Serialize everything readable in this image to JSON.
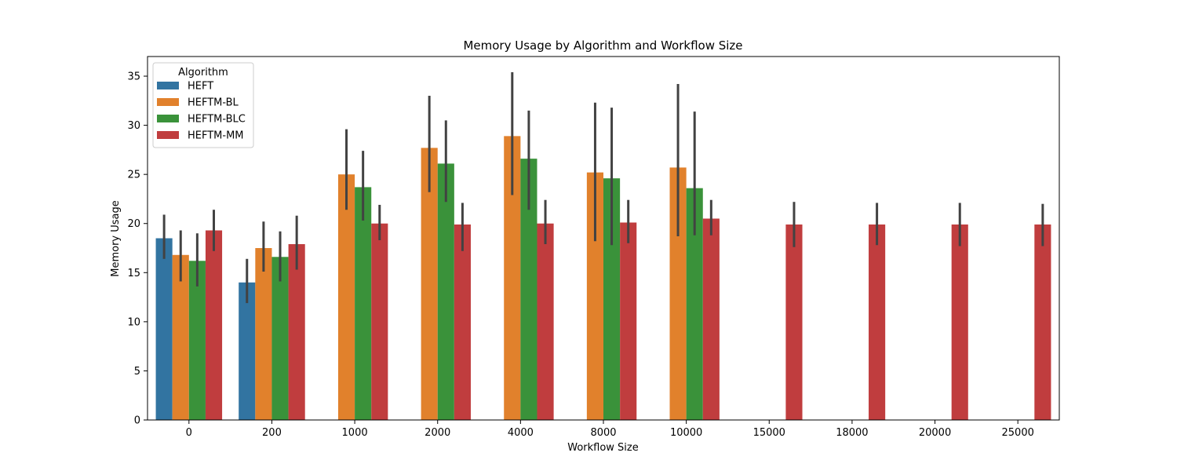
{
  "chart_data": {
    "type": "bar",
    "title": "Memory Usage by Algorithm and Workflow Size",
    "xlabel": "Workflow Size",
    "ylabel": "Memory Usage",
    "ylim": [
      0,
      37
    ],
    "yticks": [
      0,
      5,
      10,
      15,
      20,
      25,
      30,
      35
    ],
    "categories": [
      "0",
      "200",
      "1000",
      "2000",
      "4000",
      "8000",
      "10000",
      "15000",
      "18000",
      "20000",
      "25000"
    ],
    "legend": {
      "title": "Algorithm",
      "placement": "top-left"
    },
    "grid": false,
    "series": [
      {
        "name": "HEFT",
        "color": "#3274a1",
        "values": [
          18.5,
          14.0,
          null,
          null,
          null,
          null,
          null,
          null,
          null,
          null,
          null
        ],
        "ci": [
          [
            16.4,
            20.9
          ],
          [
            11.9,
            16.4
          ],
          null,
          null,
          null,
          null,
          null,
          null,
          null,
          null,
          null
        ]
      },
      {
        "name": "HEFTM-BL",
        "color": "#e1812c",
        "values": [
          16.8,
          17.5,
          25.0,
          27.7,
          28.9,
          25.2,
          25.7,
          null,
          null,
          null,
          null
        ],
        "ci": [
          [
            14.1,
            19.3
          ],
          [
            15.1,
            20.2
          ],
          [
            21.4,
            29.6
          ],
          [
            23.2,
            33.0
          ],
          [
            22.9,
            35.4
          ],
          [
            18.2,
            32.3
          ],
          [
            18.7,
            34.2
          ],
          null,
          null,
          null,
          null
        ]
      },
      {
        "name": "HEFTM-BLC",
        "color": "#3a923a",
        "values": [
          16.2,
          16.6,
          23.7,
          26.1,
          26.6,
          24.6,
          23.6,
          null,
          null,
          null,
          null
        ],
        "ci": [
          [
            13.6,
            19.0
          ],
          [
            14.1,
            19.2
          ],
          [
            20.3,
            27.4
          ],
          [
            22.2,
            30.5
          ],
          [
            21.4,
            31.5
          ],
          [
            17.8,
            31.8
          ],
          [
            18.8,
            31.4
          ],
          null,
          null,
          null,
          null
        ]
      },
      {
        "name": "HEFTM-MM",
        "color": "#c03d3e",
        "values": [
          19.3,
          17.9,
          20.0,
          19.9,
          20.0,
          20.1,
          20.5,
          19.9,
          19.9,
          19.9,
          19.9
        ],
        "ci": [
          [
            17.2,
            21.4
          ],
          [
            15.3,
            20.8
          ],
          [
            18.3,
            21.9
          ],
          [
            17.2,
            22.1
          ],
          [
            17.9,
            22.4
          ],
          [
            18.0,
            22.4
          ],
          [
            18.8,
            22.4
          ],
          [
            17.6,
            22.2
          ],
          [
            17.8,
            22.1
          ],
          [
            17.7,
            22.1
          ],
          [
            17.7,
            22.0
          ]
        ]
      }
    ]
  }
}
